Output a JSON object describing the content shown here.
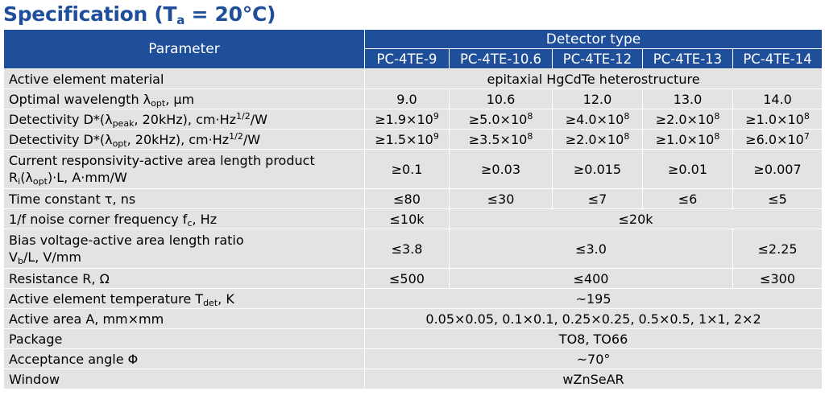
{
  "title": {
    "prefix": "Specification (T",
    "sub": "a",
    "suffix": " = 20°C)"
  },
  "header": {
    "parameter": "Parameter",
    "detector_type": "Detector type",
    "models": [
      "PC-4TE-9",
      "PC-4TE-10.6",
      "PC-4TE-12",
      "PC-4TE-13",
      "PC-4TE-14"
    ]
  },
  "rows": {
    "material": {
      "label": "Active element material",
      "value": "epitaxial HgCdTe heterostructure"
    },
    "wavelength": {
      "label_a": "Optimal wavelength λ",
      "label_sub": "opt",
      "label_b": ", µm",
      "values": [
        "9.0",
        "10.6",
        "12.0",
        "13.0",
        "14.0"
      ]
    },
    "det_peak": {
      "label_a": "Detectivity D*(λ",
      "label_sub": "peak",
      "label_b": ", 20kHz), cm·Hz",
      "label_sup": "1/2",
      "label_c": "/W",
      "values": [
        {
          "base": "≥1.9×10",
          "exp": "9"
        },
        {
          "base": "≥5.0×10",
          "exp": "8"
        },
        {
          "base": "≥4.0×10",
          "exp": "8"
        },
        {
          "base": "≥2.0×10",
          "exp": "8"
        },
        {
          "base": "≥1.0×10",
          "exp": "8"
        }
      ]
    },
    "det_opt": {
      "label_a": "Detectivity D*(λ",
      "label_sub": "opt",
      "label_b": ", 20kHz), cm·Hz",
      "label_sup": "1/2",
      "label_c": "/W",
      "values": [
        {
          "base": "≥1.5×10",
          "exp": "9"
        },
        {
          "base": "≥3.5×10",
          "exp": "8"
        },
        {
          "base": "≥2.0×10",
          "exp": "8"
        },
        {
          "base": "≥1.0×10",
          "exp": "8"
        },
        {
          "base": "≥6.0×10",
          "exp": "7"
        }
      ]
    },
    "responsivity": {
      "label_line1": "Current responsivity-active area length product",
      "label_a": "R",
      "label_sub1": "i",
      "label_b": "(λ",
      "label_sub2": "opt",
      "label_c": ")·L, A·mm/W",
      "values": [
        "≥0.1",
        "≥0.03",
        "≥0.015",
        "≥0.01",
        "≥0.007"
      ]
    },
    "time_constant": {
      "label": "Time constant τ, ns",
      "values": [
        "≤80",
        "≤30",
        "≤7",
        "≤6",
        "≤5"
      ]
    },
    "noise_corner": {
      "label_a": "1/f noise corner frequency f",
      "label_sub": "c",
      "label_b": ", Hz",
      "values": [
        "≤10k",
        "≤20k"
      ]
    },
    "bias": {
      "label_line1": "Bias voltage-active area length ratio",
      "label_a": "V",
      "label_sub": "b",
      "label_b": "/L, V/mm",
      "values": [
        "≤3.8",
        "≤3.0",
        "≤2.25"
      ]
    },
    "resistance": {
      "label": "Resistance R, Ω",
      "values": [
        "≤500",
        "≤400",
        "≤300"
      ]
    },
    "temperature": {
      "label_a": "Active element temperature T",
      "label_sub": "det",
      "label_b": ", K",
      "value": "~195"
    },
    "area": {
      "label": "Active area A, mm×mm",
      "value": "0.05×0.05, 0.1×0.1, 0.25×0.25, 0.5×0.5, 1×1, 2×2"
    },
    "package": {
      "label": "Package",
      "value": "TO8, TO66"
    },
    "acceptance": {
      "label": "Acceptance angle Φ",
      "value": "~70°"
    },
    "window": {
      "label": "Window",
      "value": "wZnSeAR"
    }
  }
}
